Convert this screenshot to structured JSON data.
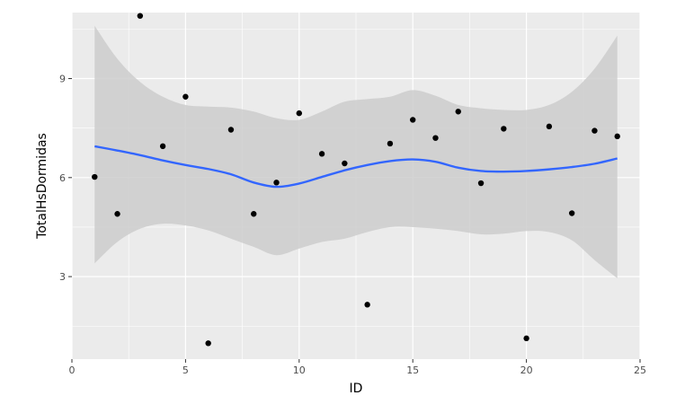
{
  "chart_data": {
    "type": "scatter",
    "xlabel": "ID",
    "ylabel": "TotalHsDormidas",
    "xlim": [
      0,
      25
    ],
    "ylim": [
      0.5,
      11
    ],
    "x_ticks": [
      0,
      5,
      10,
      15,
      20,
      25
    ],
    "y_ticks": [
      3,
      6,
      9
    ],
    "grid": true,
    "colors": {
      "panel": "#ebebeb",
      "grid_major": "#ffffff",
      "points": "#000000",
      "smooth_line": "#3366ff",
      "ribbon": "#cccccc"
    },
    "points": [
      {
        "x": 1,
        "y": 6.02
      },
      {
        "x": 2,
        "y": 4.9
      },
      {
        "x": 3,
        "y": 10.9
      },
      {
        "x": 4,
        "y": 6.95
      },
      {
        "x": 5,
        "y": 8.45
      },
      {
        "x": 6,
        "y": 0.98
      },
      {
        "x": 7,
        "y": 7.45
      },
      {
        "x": 8,
        "y": 4.9
      },
      {
        "x": 9,
        "y": 5.85
      },
      {
        "x": 10,
        "y": 7.95
      },
      {
        "x": 11,
        "y": 6.72
      },
      {
        "x": 12,
        "y": 6.43
      },
      {
        "x": 13,
        "y": 2.15
      },
      {
        "x": 14,
        "y": 7.03
      },
      {
        "x": 15,
        "y": 7.75
      },
      {
        "x": 16,
        "y": 7.2
      },
      {
        "x": 17,
        "y": 8.0
      },
      {
        "x": 18,
        "y": 5.83
      },
      {
        "x": 19,
        "y": 7.48
      },
      {
        "x": 20,
        "y": 1.13
      },
      {
        "x": 21,
        "y": 7.55
      },
      {
        "x": 22,
        "y": 4.92
      },
      {
        "x": 23,
        "y": 7.42
      },
      {
        "x": 24,
        "y": 7.25
      }
    ],
    "smooth": {
      "x": [
        1,
        2,
        3,
        4,
        5,
        6,
        7,
        8,
        9,
        10,
        11,
        12,
        13,
        14,
        15,
        16,
        17,
        18,
        19,
        20,
        21,
        22,
        23,
        24
      ],
      "fit": [
        6.95,
        6.82,
        6.68,
        6.52,
        6.38,
        6.26,
        6.1,
        5.85,
        5.72,
        5.82,
        6.02,
        6.22,
        6.38,
        6.5,
        6.55,
        6.48,
        6.3,
        6.2,
        6.18,
        6.2,
        6.25,
        6.32,
        6.42,
        6.58
      ],
      "upper": [
        10.6,
        9.6,
        8.9,
        8.45,
        8.2,
        8.15,
        8.12,
        8.0,
        7.8,
        7.75,
        8.0,
        8.3,
        8.38,
        8.45,
        8.65,
        8.48,
        8.2,
        8.1,
        8.05,
        8.05,
        8.2,
        8.6,
        9.3,
        10.3
      ],
      "lower": [
        3.4,
        4.05,
        4.45,
        4.6,
        4.55,
        4.4,
        4.15,
        3.9,
        3.65,
        3.85,
        4.05,
        4.15,
        4.35,
        4.5,
        4.5,
        4.45,
        4.38,
        4.28,
        4.3,
        4.38,
        4.35,
        4.1,
        3.5,
        2.95
      ]
    }
  }
}
